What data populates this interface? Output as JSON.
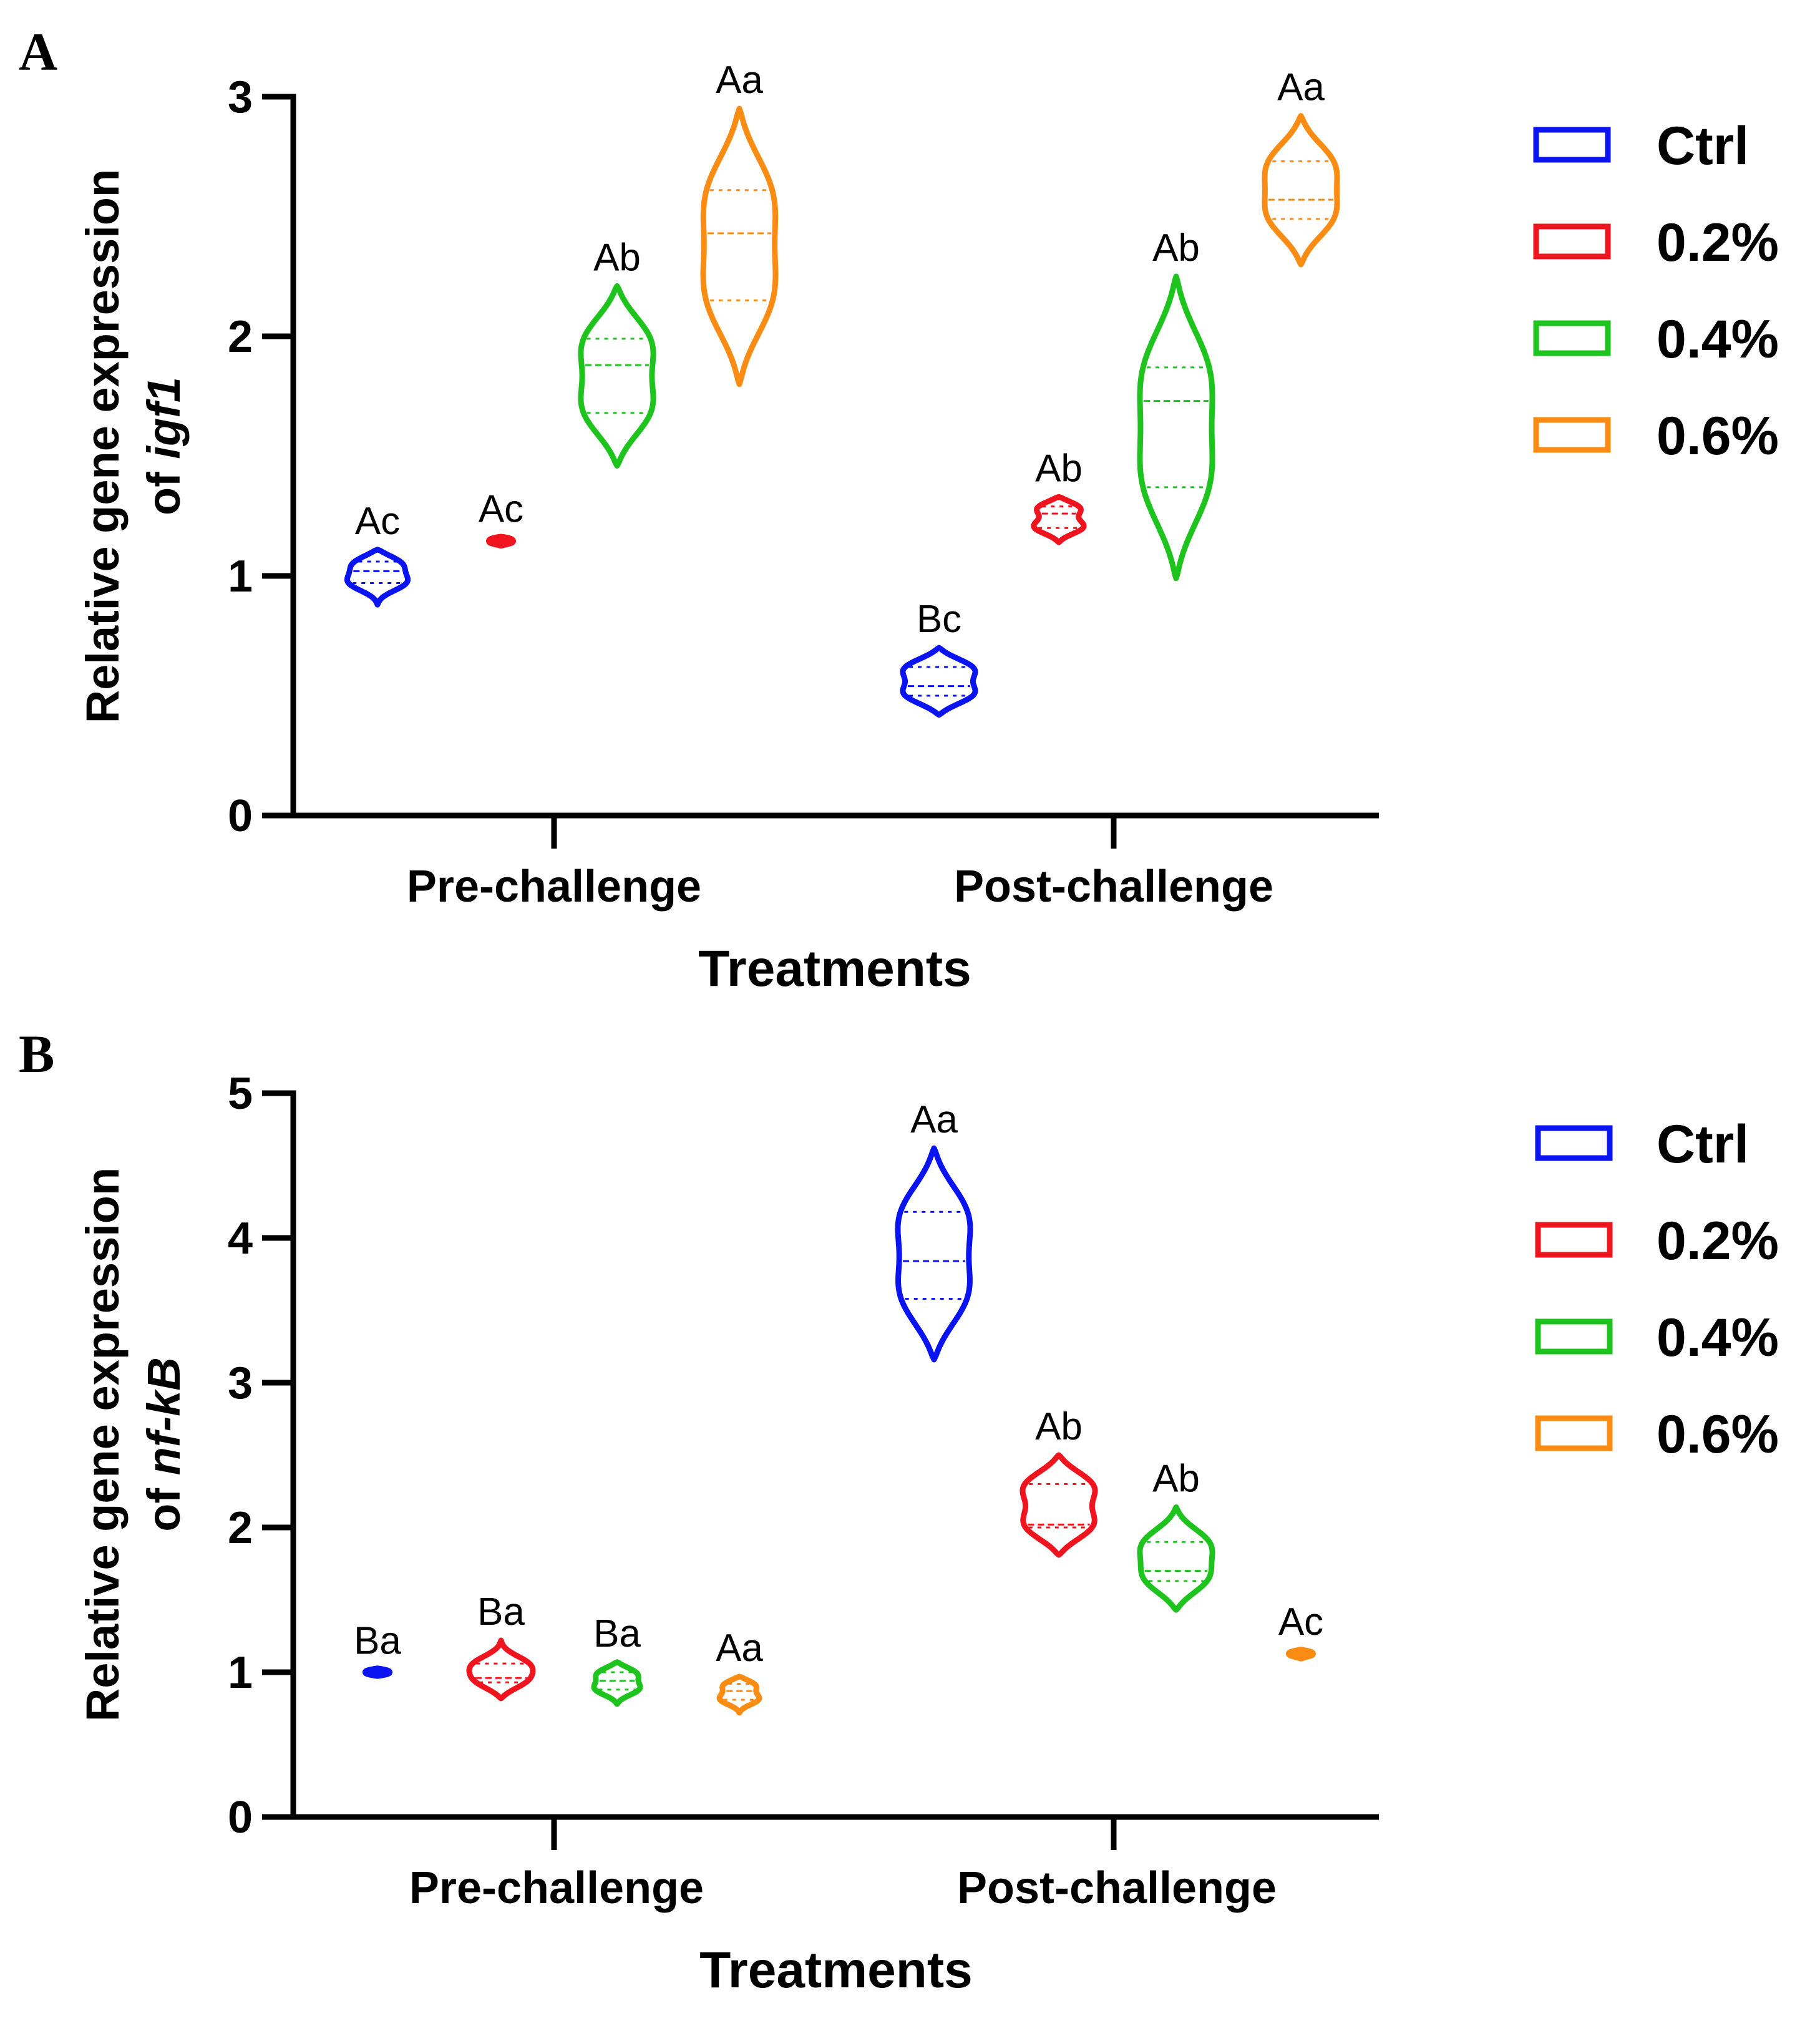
{
  "chart_data": [
    {
      "type": "violin",
      "panel": "A",
      "ylabel_line1": "Relative gene expression",
      "ylabel_prefix": "of ",
      "ylabel_gene": "igf1",
      "xlabel": "Treatments",
      "ylim": [
        0,
        3
      ],
      "yticks": [
        "0",
        "1",
        "2",
        "3"
      ],
      "categories": [
        "Pre-challenge",
        "Post-challenge"
      ],
      "legend": [
        "Ctrl",
        "0.2%",
        "0.4%",
        "0.6%"
      ],
      "series": [
        {
          "name": "Ctrl",
          "color": "#0a14f0",
          "values": [
            {
              "min": 0.88,
              "max": 1.11,
              "q1": 0.97,
              "median": 1.02,
              "q3": 1.06,
              "label": "Ac"
            },
            {
              "min": 0.42,
              "max": 0.7,
              "q1": 0.5,
              "median": 0.54,
              "q3": 0.62,
              "label": "Bc"
            }
          ]
        },
        {
          "name": "0.2%",
          "color": "#f0141e",
          "values": [
            {
              "min": 1.13,
              "max": 1.16,
              "q1": 1.14,
              "median": 1.15,
              "q3": 1.155,
              "label": "Ac"
            },
            {
              "min": 1.14,
              "max": 1.33,
              "q1": 1.2,
              "median": 1.26,
              "q3": 1.29,
              "label": "Ab"
            }
          ]
        },
        {
          "name": "0.4%",
          "color": "#1ec31e",
          "values": [
            {
              "min": 1.46,
              "max": 2.21,
              "q1": 1.68,
              "median": 1.88,
              "q3": 1.99,
              "label": "Ab"
            },
            {
              "min": 0.99,
              "max": 2.25,
              "q1": 1.37,
              "median": 1.73,
              "q3": 1.87,
              "label": "Ab"
            }
          ]
        },
        {
          "name": "0.6%",
          "color": "#fa8c14",
          "values": [
            {
              "min": 1.8,
              "max": 2.95,
              "q1": 2.15,
              "median": 2.43,
              "q3": 2.61,
              "label": "Aa"
            },
            {
              "min": 2.3,
              "max": 2.92,
              "q1": 2.49,
              "median": 2.57,
              "q3": 2.73,
              "label": "Aa"
            }
          ]
        }
      ]
    },
    {
      "type": "violin",
      "panel": "B",
      "ylabel_line1": "Relative gene expression",
      "ylabel_prefix": "of ",
      "ylabel_gene": "nf-kB",
      "xlabel": "Treatments",
      "ylim": [
        0,
        5
      ],
      "yticks": [
        "0",
        "1",
        "2",
        "3",
        "4",
        "5"
      ],
      "categories": [
        "Pre-challenge",
        "Post-challenge"
      ],
      "legend": [
        "Ctrl",
        "0.2%",
        "0.4%",
        "0.6%"
      ],
      "series": [
        {
          "name": "Ctrl",
          "color": "#0a14f0",
          "values": [
            {
              "min": 0.98,
              "max": 1.02,
              "q1": 0.99,
              "median": 1.0,
              "q3": 1.01,
              "label": "Ba"
            },
            {
              "min": 3.16,
              "max": 4.62,
              "q1": 3.58,
              "median": 3.84,
              "q3": 4.18,
              "label": "Aa"
            }
          ]
        },
        {
          "name": "0.2%",
          "color": "#f0141e",
          "values": [
            {
              "min": 0.82,
              "max": 1.22,
              "q1": 0.93,
              "median": 0.96,
              "q3": 1.06,
              "label": "Ba"
            },
            {
              "min": 1.81,
              "max": 2.5,
              "q1": 2.0,
              "median": 2.02,
              "q3": 2.3,
              "label": "Ab"
            }
          ]
        },
        {
          "name": "0.4%",
          "color": "#1ec31e",
          "values": [
            {
              "min": 0.78,
              "max": 1.07,
              "q1": 0.88,
              "median": 0.94,
              "q3": 1.0,
              "label": "Ba"
            },
            {
              "min": 1.43,
              "max": 2.14,
              "q1": 1.63,
              "median": 1.7,
              "q3": 1.9,
              "label": "Ab"
            }
          ]
        },
        {
          "name": "0.6%",
          "color": "#fa8c14",
          "values": [
            {
              "min": 0.72,
              "max": 0.97,
              "q1": 0.81,
              "median": 0.87,
              "q3": 0.92,
              "label": "Aa"
            },
            {
              "min": 1.1,
              "max": 1.15,
              "q1": 1.12,
              "median": 1.13,
              "q3": 1.14,
              "label": "Ac"
            }
          ]
        }
      ]
    }
  ]
}
